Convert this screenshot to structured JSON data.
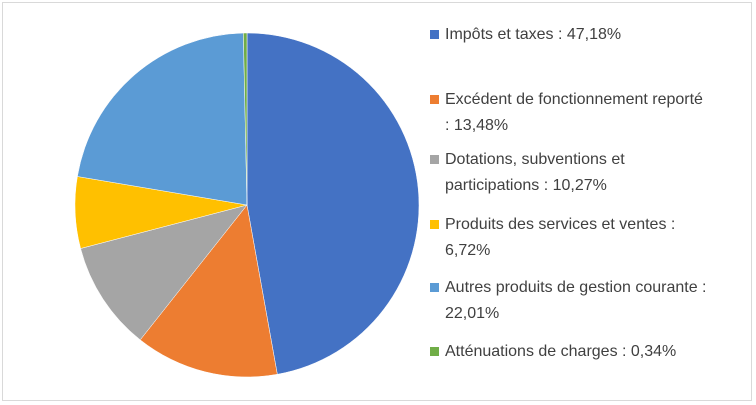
{
  "chart_data": {
    "type": "pie",
    "categories": [
      "Impôts et taxes : 47,18%",
      "Excédent de fonctionnement reporté : 13,48%",
      "Dotations, subventions et participations : 10,27%",
      "Produits des services et ventes : 6,72%",
      "Autres produits de gestion courante : 22,01%",
      "Atténuations de charges : 0,34%"
    ],
    "values": [
      47.18,
      13.48,
      10.27,
      6.72,
      22.01,
      0.34
    ],
    "colors": [
      "#4472c4",
      "#ed7d31",
      "#a5a5a5",
      "#ffc000",
      "#5b9bd5",
      "#70ad47"
    ],
    "legend": "right"
  }
}
